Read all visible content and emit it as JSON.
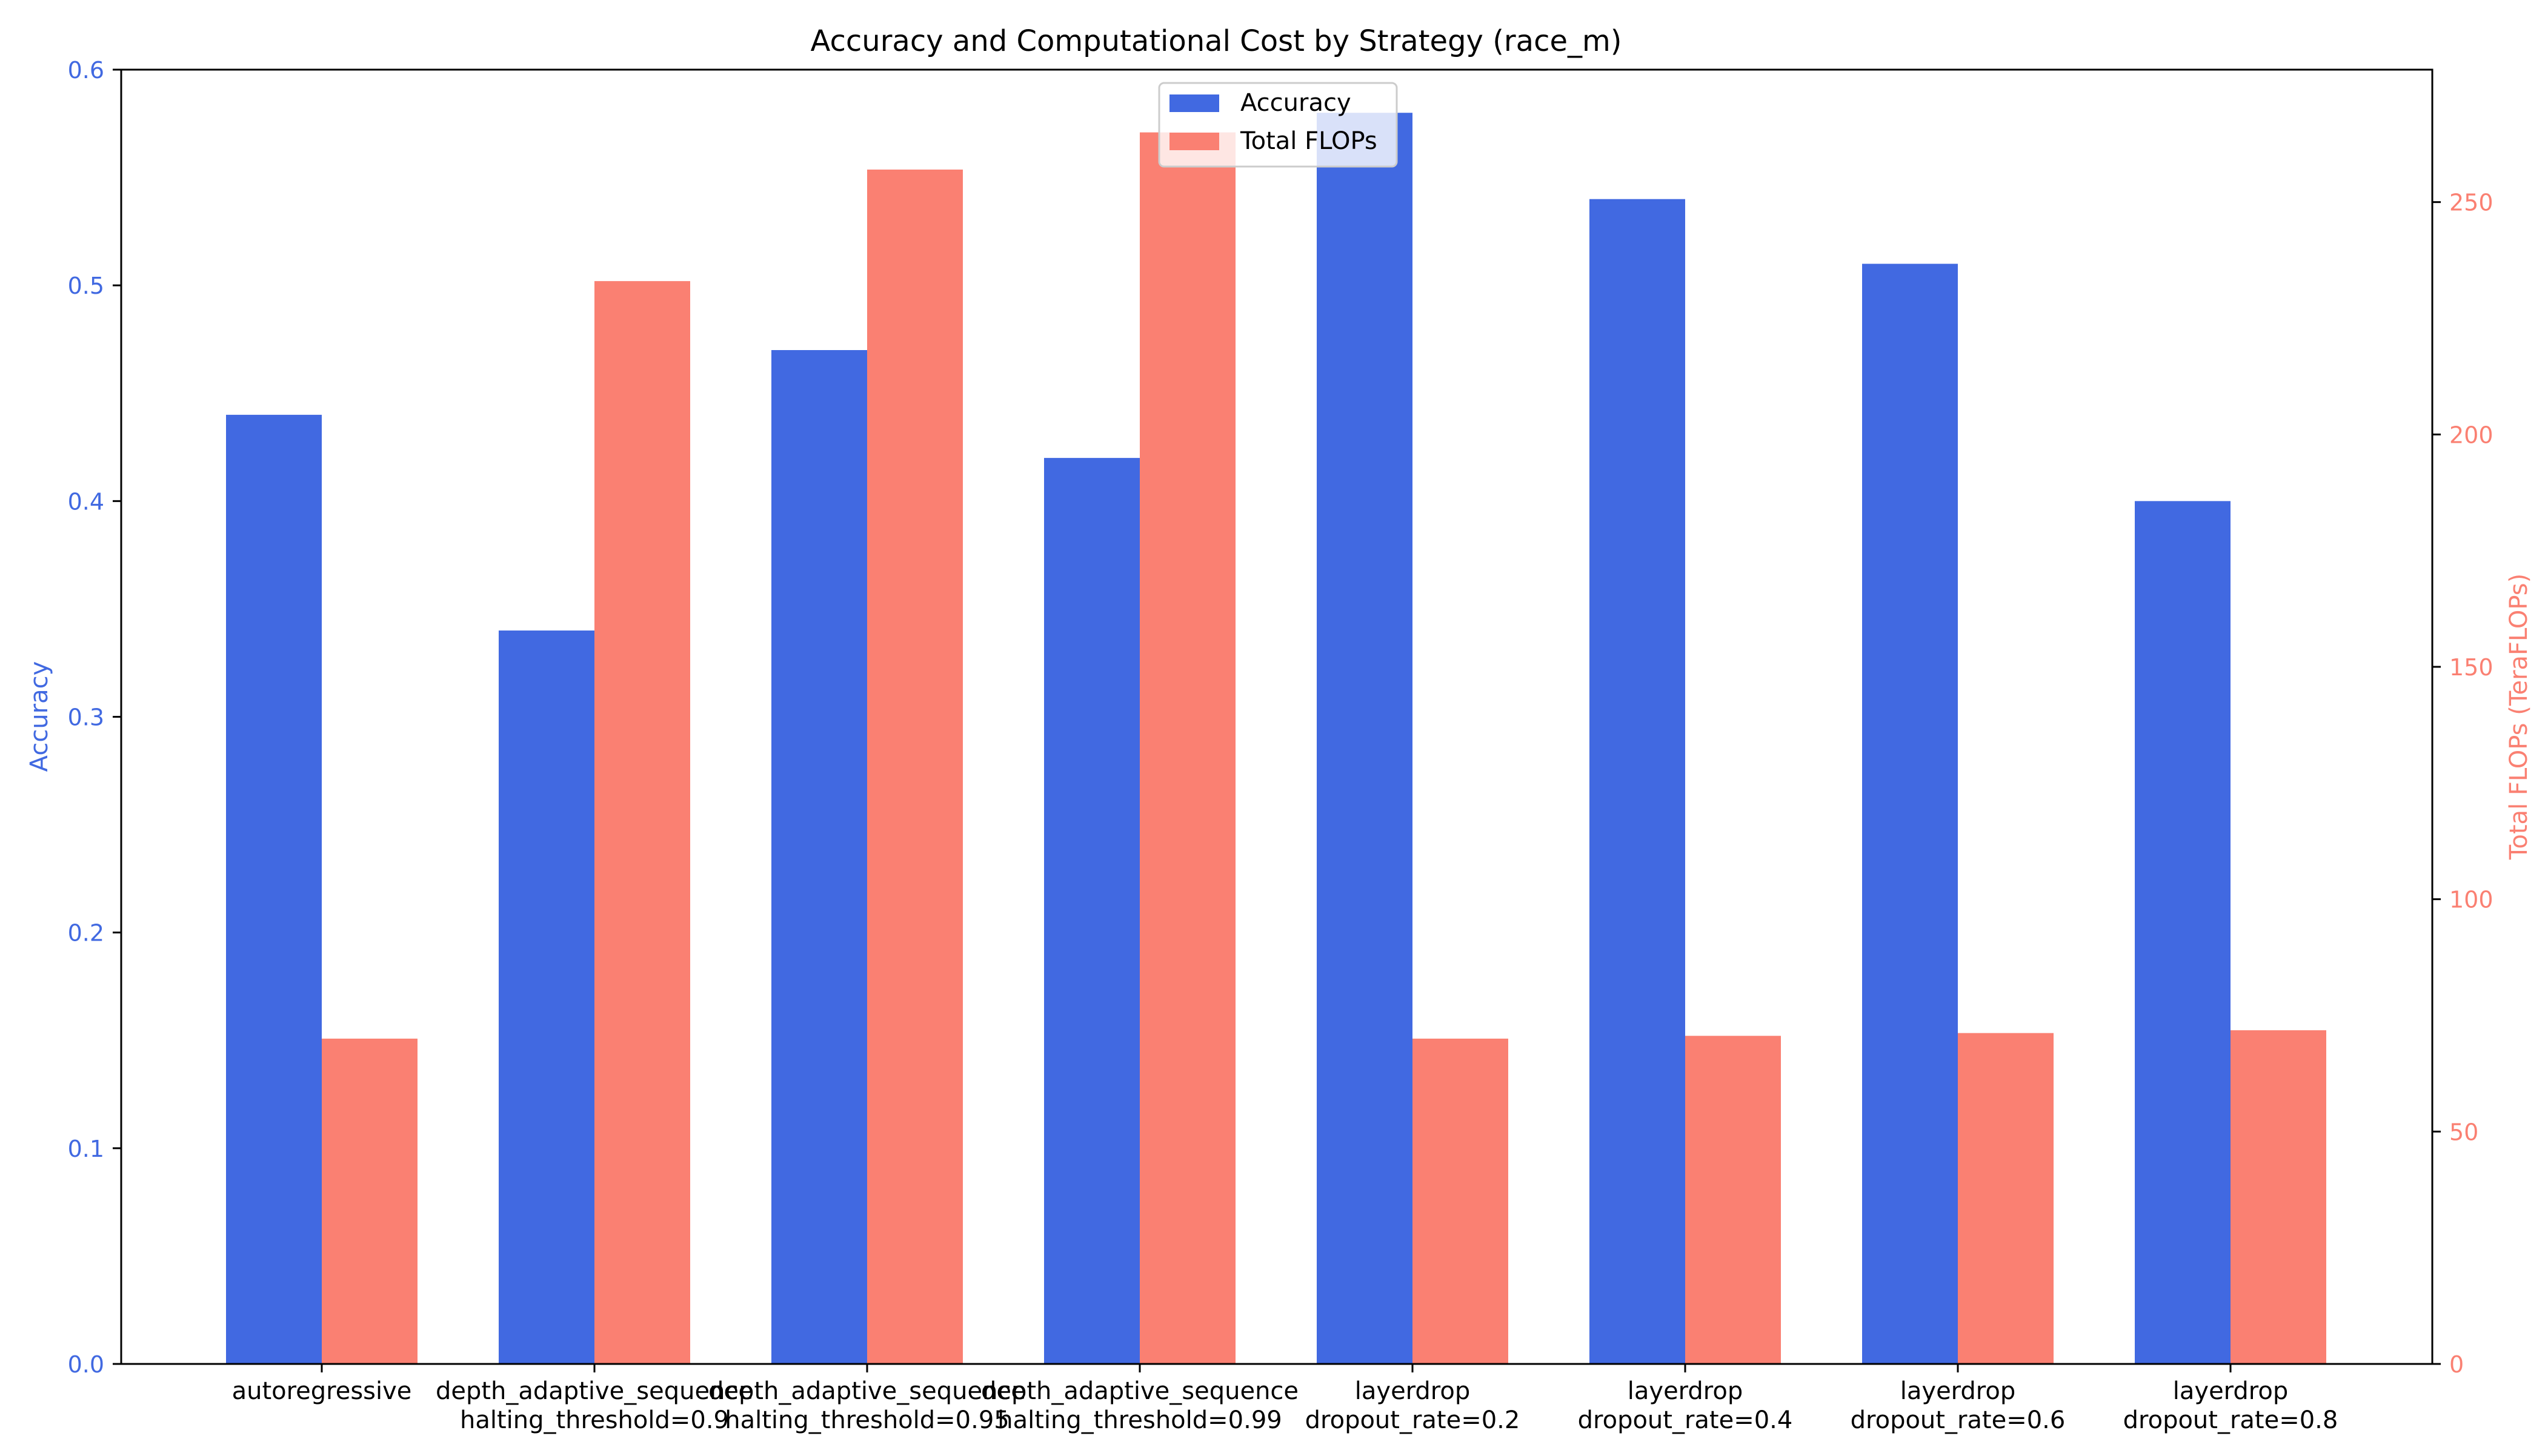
{
  "chart_data": {
    "type": "bar",
    "title": "Accuracy and Computational Cost by Strategy (race_m)",
    "categories": [
      [
        "autoregressive"
      ],
      [
        "depth_adaptive_sequence",
        "halting_threshold=0.9"
      ],
      [
        "depth_adaptive_sequence",
        "halting_threshold=0.95"
      ],
      [
        "depth_adaptive_sequence",
        "halting_threshold=0.99"
      ],
      [
        "layerdrop",
        "dropout_rate=0.2"
      ],
      [
        "layerdrop",
        "dropout_rate=0.4"
      ],
      [
        "layerdrop",
        "dropout_rate=0.6"
      ],
      [
        "layerdrop",
        "dropout_rate=0.8"
      ]
    ],
    "series": [
      {
        "name": "Accuracy",
        "axis": "left",
        "color": "#4169e1",
        "values": [
          0.44,
          0.34,
          0.47,
          0.42,
          0.58,
          0.54,
          0.51,
          0.4
        ]
      },
      {
        "name": "Total FLOPs",
        "axis": "right",
        "color": "#fa8072",
        "values": [
          70,
          233,
          257,
          265,
          70,
          70.6,
          71.2,
          71.8
        ]
      }
    ],
    "left_axis": {
      "label": "Accuracy",
      "color": "#4169e1",
      "range": [
        0,
        0.6
      ],
      "ticks": [
        0.0,
        0.1,
        0.2,
        0.3,
        0.4,
        0.5,
        0.6
      ],
      "tick_labels": [
        "0.0",
        "0.1",
        "0.2",
        "0.3",
        "0.4",
        "0.5",
        "0.6"
      ]
    },
    "right_axis": {
      "label": "Total FLOPs (TeraFLOPs)",
      "color": "#fa8072",
      "range": [
        0,
        278.5
      ],
      "ticks": [
        0,
        50,
        100,
        150,
        200,
        250
      ],
      "tick_labels": [
        "0",
        "50",
        "100",
        "150",
        "200",
        "250"
      ]
    },
    "grid": false,
    "legend": {
      "placement": "upper-center",
      "entries": [
        "Accuracy",
        "Total FLOPs"
      ]
    }
  }
}
